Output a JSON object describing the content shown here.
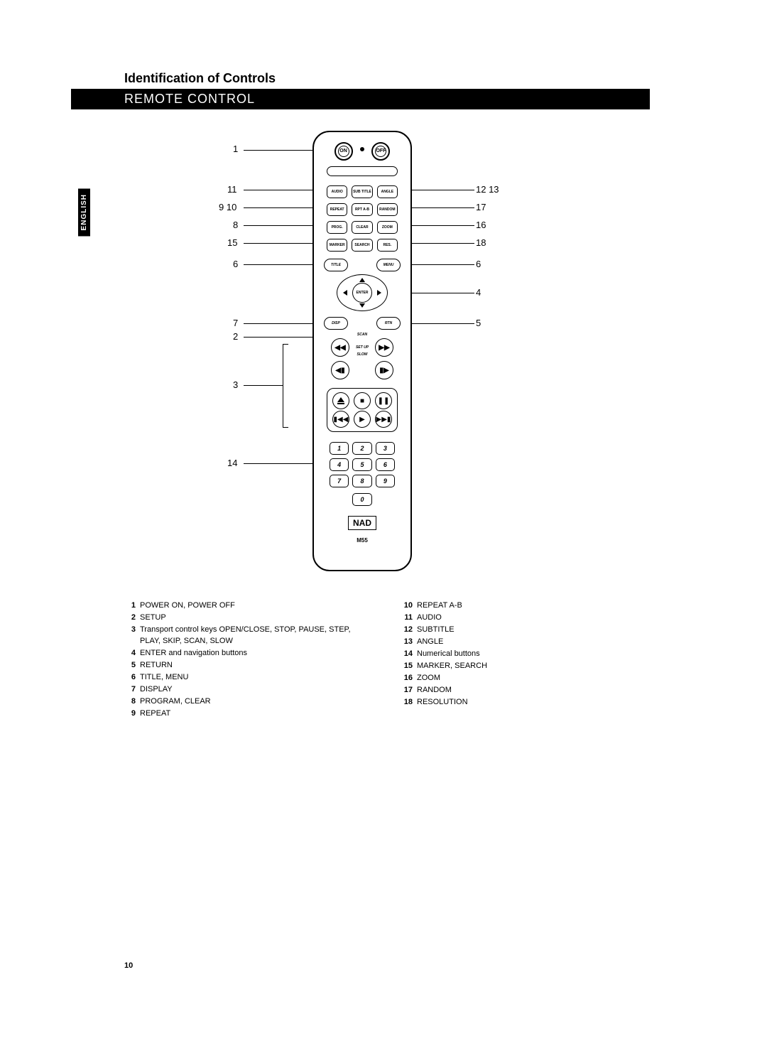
{
  "heading": "Identification of Controls",
  "subheading": "REMOTE CONTROL",
  "side_tab": "ENGLISH",
  "page_number": "10",
  "remote": {
    "power_on": "ON",
    "power_off": "OFF",
    "row1": [
      "AUDIO",
      "SUB\nTITLE",
      "ANGLE"
    ],
    "row2": [
      "REPEAT",
      "RPT\nA-B",
      "RANDOM"
    ],
    "row3": [
      "PROG.",
      "CLEAR",
      "ZOOM"
    ],
    "row4": [
      "MARKER",
      "SEARCH",
      "RES."
    ],
    "title_btn": "TITLE",
    "menu_btn": "MENU",
    "enter_btn": "ENTER",
    "disp_btn": "DISP",
    "rtn_btn": "RTN",
    "scan": "SCAN",
    "setup_mid": "SET\nUP",
    "slow": "SLOW",
    "scan_back": "◀◀",
    "scan_fwd": "▶▶",
    "slow_back": "◀▮",
    "slow_fwd": "▮▶",
    "transport": [
      "⏏",
      "■",
      "❚❚",
      "▮◀◀",
      "▶",
      "▶▶▮"
    ],
    "numbers": [
      "1",
      "2",
      "3",
      "4",
      "5",
      "6",
      "7",
      "8",
      "9"
    ],
    "zero": "0",
    "brand": "NAD",
    "model": "M55"
  },
  "callouts": {
    "c1": "1",
    "c11": "11",
    "c910": "9 10",
    "c8": "8",
    "c15": "15",
    "c6l": "6",
    "c7": "7",
    "c2": "2",
    "c3": "3",
    "c14": "14",
    "c1213": "12 13",
    "c17": "17",
    "c16": "16",
    "c18": "18",
    "c6r": "6",
    "c4": "4",
    "c5": "5"
  },
  "legend_left": [
    {
      "n": "1",
      "t": "POWER ON, POWER OFF"
    },
    {
      "n": "2",
      "t": "SETUP"
    },
    {
      "n": "3",
      "t": "Transport control keys OPEN/CLOSE, STOP, PAUSE, STEP, PLAY, SKIP, SCAN, SLOW"
    },
    {
      "n": "4",
      "t": "ENTER and navigation buttons"
    },
    {
      "n": "5",
      "t": "RETURN"
    },
    {
      "n": "6",
      "t": "TITLE, MENU"
    },
    {
      "n": "7",
      "t": "DISPLAY"
    },
    {
      "n": "8",
      "t": "PROGRAM, CLEAR"
    },
    {
      "n": "9",
      "t": "REPEAT"
    }
  ],
  "legend_right": [
    {
      "n": "10",
      "t": "REPEAT A-B"
    },
    {
      "n": "11",
      "t": "AUDIO"
    },
    {
      "n": "12",
      "t": "SUBTITLE"
    },
    {
      "n": "13",
      "t": "ANGLE"
    },
    {
      "n": "14",
      "t": "Numerical buttons"
    },
    {
      "n": "15",
      "t": "MARKER, SEARCH"
    },
    {
      "n": "16",
      "t": "ZOOM"
    },
    {
      "n": "17",
      "t": "RANDOM"
    },
    {
      "n": "18",
      "t": "RESOLUTION"
    }
  ],
  "colors": {
    "text": "#000000",
    "bg": "#ffffff",
    "bar": "#000000"
  }
}
